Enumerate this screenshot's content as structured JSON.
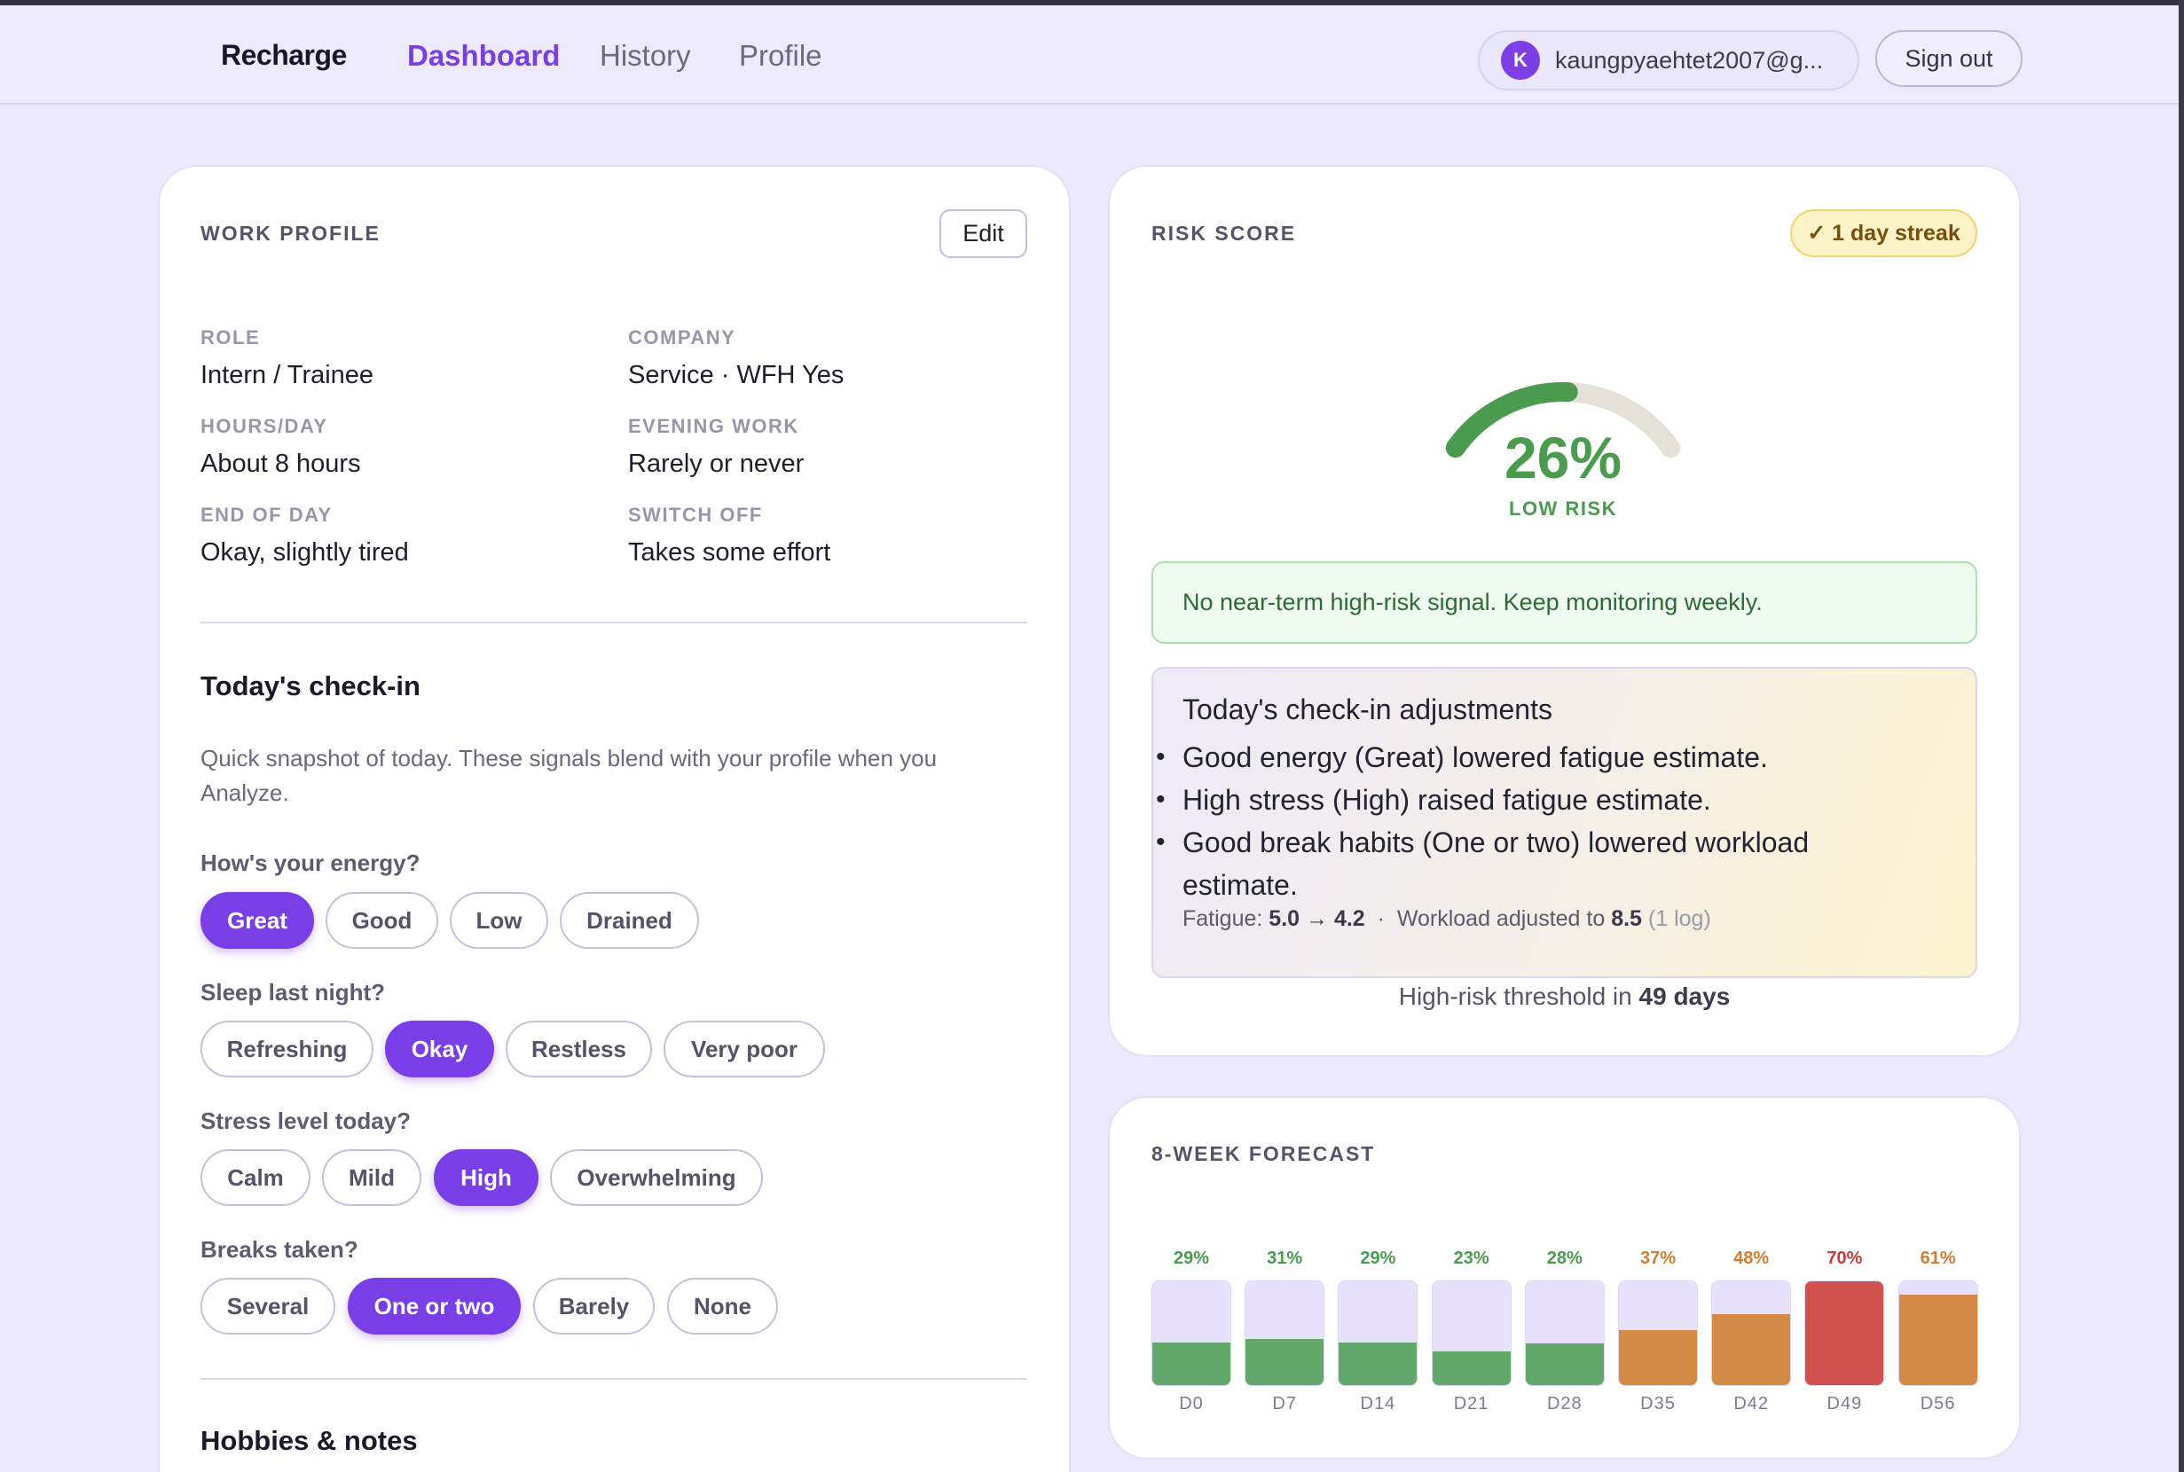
{
  "nav": {
    "brand": "Recharge",
    "links": [
      "Dashboard",
      "History",
      "Profile"
    ],
    "active": "Dashboard",
    "user_initial": "K",
    "user_email": "kaungpyaehtet2007@g...",
    "signout_label": "Sign out"
  },
  "profile": {
    "title": "WORK PROFILE",
    "edit_label": "Edit",
    "fields": [
      {
        "label": "ROLE",
        "value": "Intern / Trainee"
      },
      {
        "label": "COMPANY",
        "value": "Service · WFH Yes"
      },
      {
        "label": "HOURS/DAY",
        "value": "About 8 hours"
      },
      {
        "label": "EVENING WORK",
        "value": "Rarely or never"
      },
      {
        "label": "END OF DAY",
        "value": "Okay, slightly tired"
      },
      {
        "label": "SWITCH OFF",
        "value": "Takes some effort"
      }
    ]
  },
  "checkin": {
    "title": "Today's check-in",
    "description_line1": "Quick snapshot of today. These signals blend with your profile when you",
    "description_line2": "Analyze.",
    "questions": [
      {
        "label": "How's your energy?",
        "options": [
          "Great",
          "Good",
          "Low",
          "Drained"
        ],
        "selected": "Great"
      },
      {
        "label": "Sleep last night?",
        "options": [
          "Refreshing",
          "Okay",
          "Restless",
          "Very poor"
        ],
        "selected": "Okay"
      },
      {
        "label": "Stress level today?",
        "options": [
          "Calm",
          "Mild",
          "High",
          "Overwhelming"
        ],
        "selected": "High"
      },
      {
        "label": "Breaks taken?",
        "options": [
          "Several",
          "One or two",
          "Barely",
          "None"
        ],
        "selected": "One or two"
      }
    ]
  },
  "hobbies": {
    "title": "Hobbies & notes"
  },
  "risk": {
    "title": "RISK SCORE",
    "streak_label": "✓ 1 day streak",
    "percent": "26%",
    "gauge_fraction": 0.26,
    "level": "LOW RISK",
    "gauge_color": "#4a9a4f",
    "message": "No near-term high-risk signal. Keep monitoring weekly.",
    "adjustments": {
      "title": "Today's check-in adjustments",
      "items": [
        "Good energy (Great) lowered fatigue estimate.",
        "High stress (High) raised fatigue estimate.",
        "Good break habits (One or two) lowered workload",
        "estimate."
      ],
      "fatigue_label": "Fatigue:",
      "fatigue_value": "5.0 → 4.2",
      "separator": "·",
      "workload_label": "Workload adjusted to",
      "workload_value": "8.5",
      "log_note": "(1 log)"
    },
    "threshold_label": "High-risk threshold in",
    "threshold_value": "49 days"
  },
  "forecast": {
    "title": "8-WEEK FORECAST",
    "colors": {
      "low": "#62a86a",
      "medium": "#d48a47",
      "high": "#d1514e",
      "low_text": "#4a9a4f",
      "medium_text": "#d07d34",
      "high_text": "#c73a37"
    }
  },
  "chart_data": {
    "type": "bar",
    "title": "8-WEEK FORECAST",
    "categories": [
      "D0",
      "D7",
      "D14",
      "D21",
      "D28",
      "D35",
      "D42",
      "D49",
      "D56"
    ],
    "values": [
      29,
      31,
      29,
      23,
      28,
      37,
      48,
      70,
      61
    ],
    "value_labels": [
      "29%",
      "31%",
      "29%",
      "23%",
      "28%",
      "37%",
      "48%",
      "70%",
      "61%"
    ],
    "levels": [
      "low",
      "low",
      "low",
      "low",
      "low",
      "medium",
      "medium",
      "high",
      "medium"
    ],
    "ylim": [
      0,
      70
    ]
  }
}
